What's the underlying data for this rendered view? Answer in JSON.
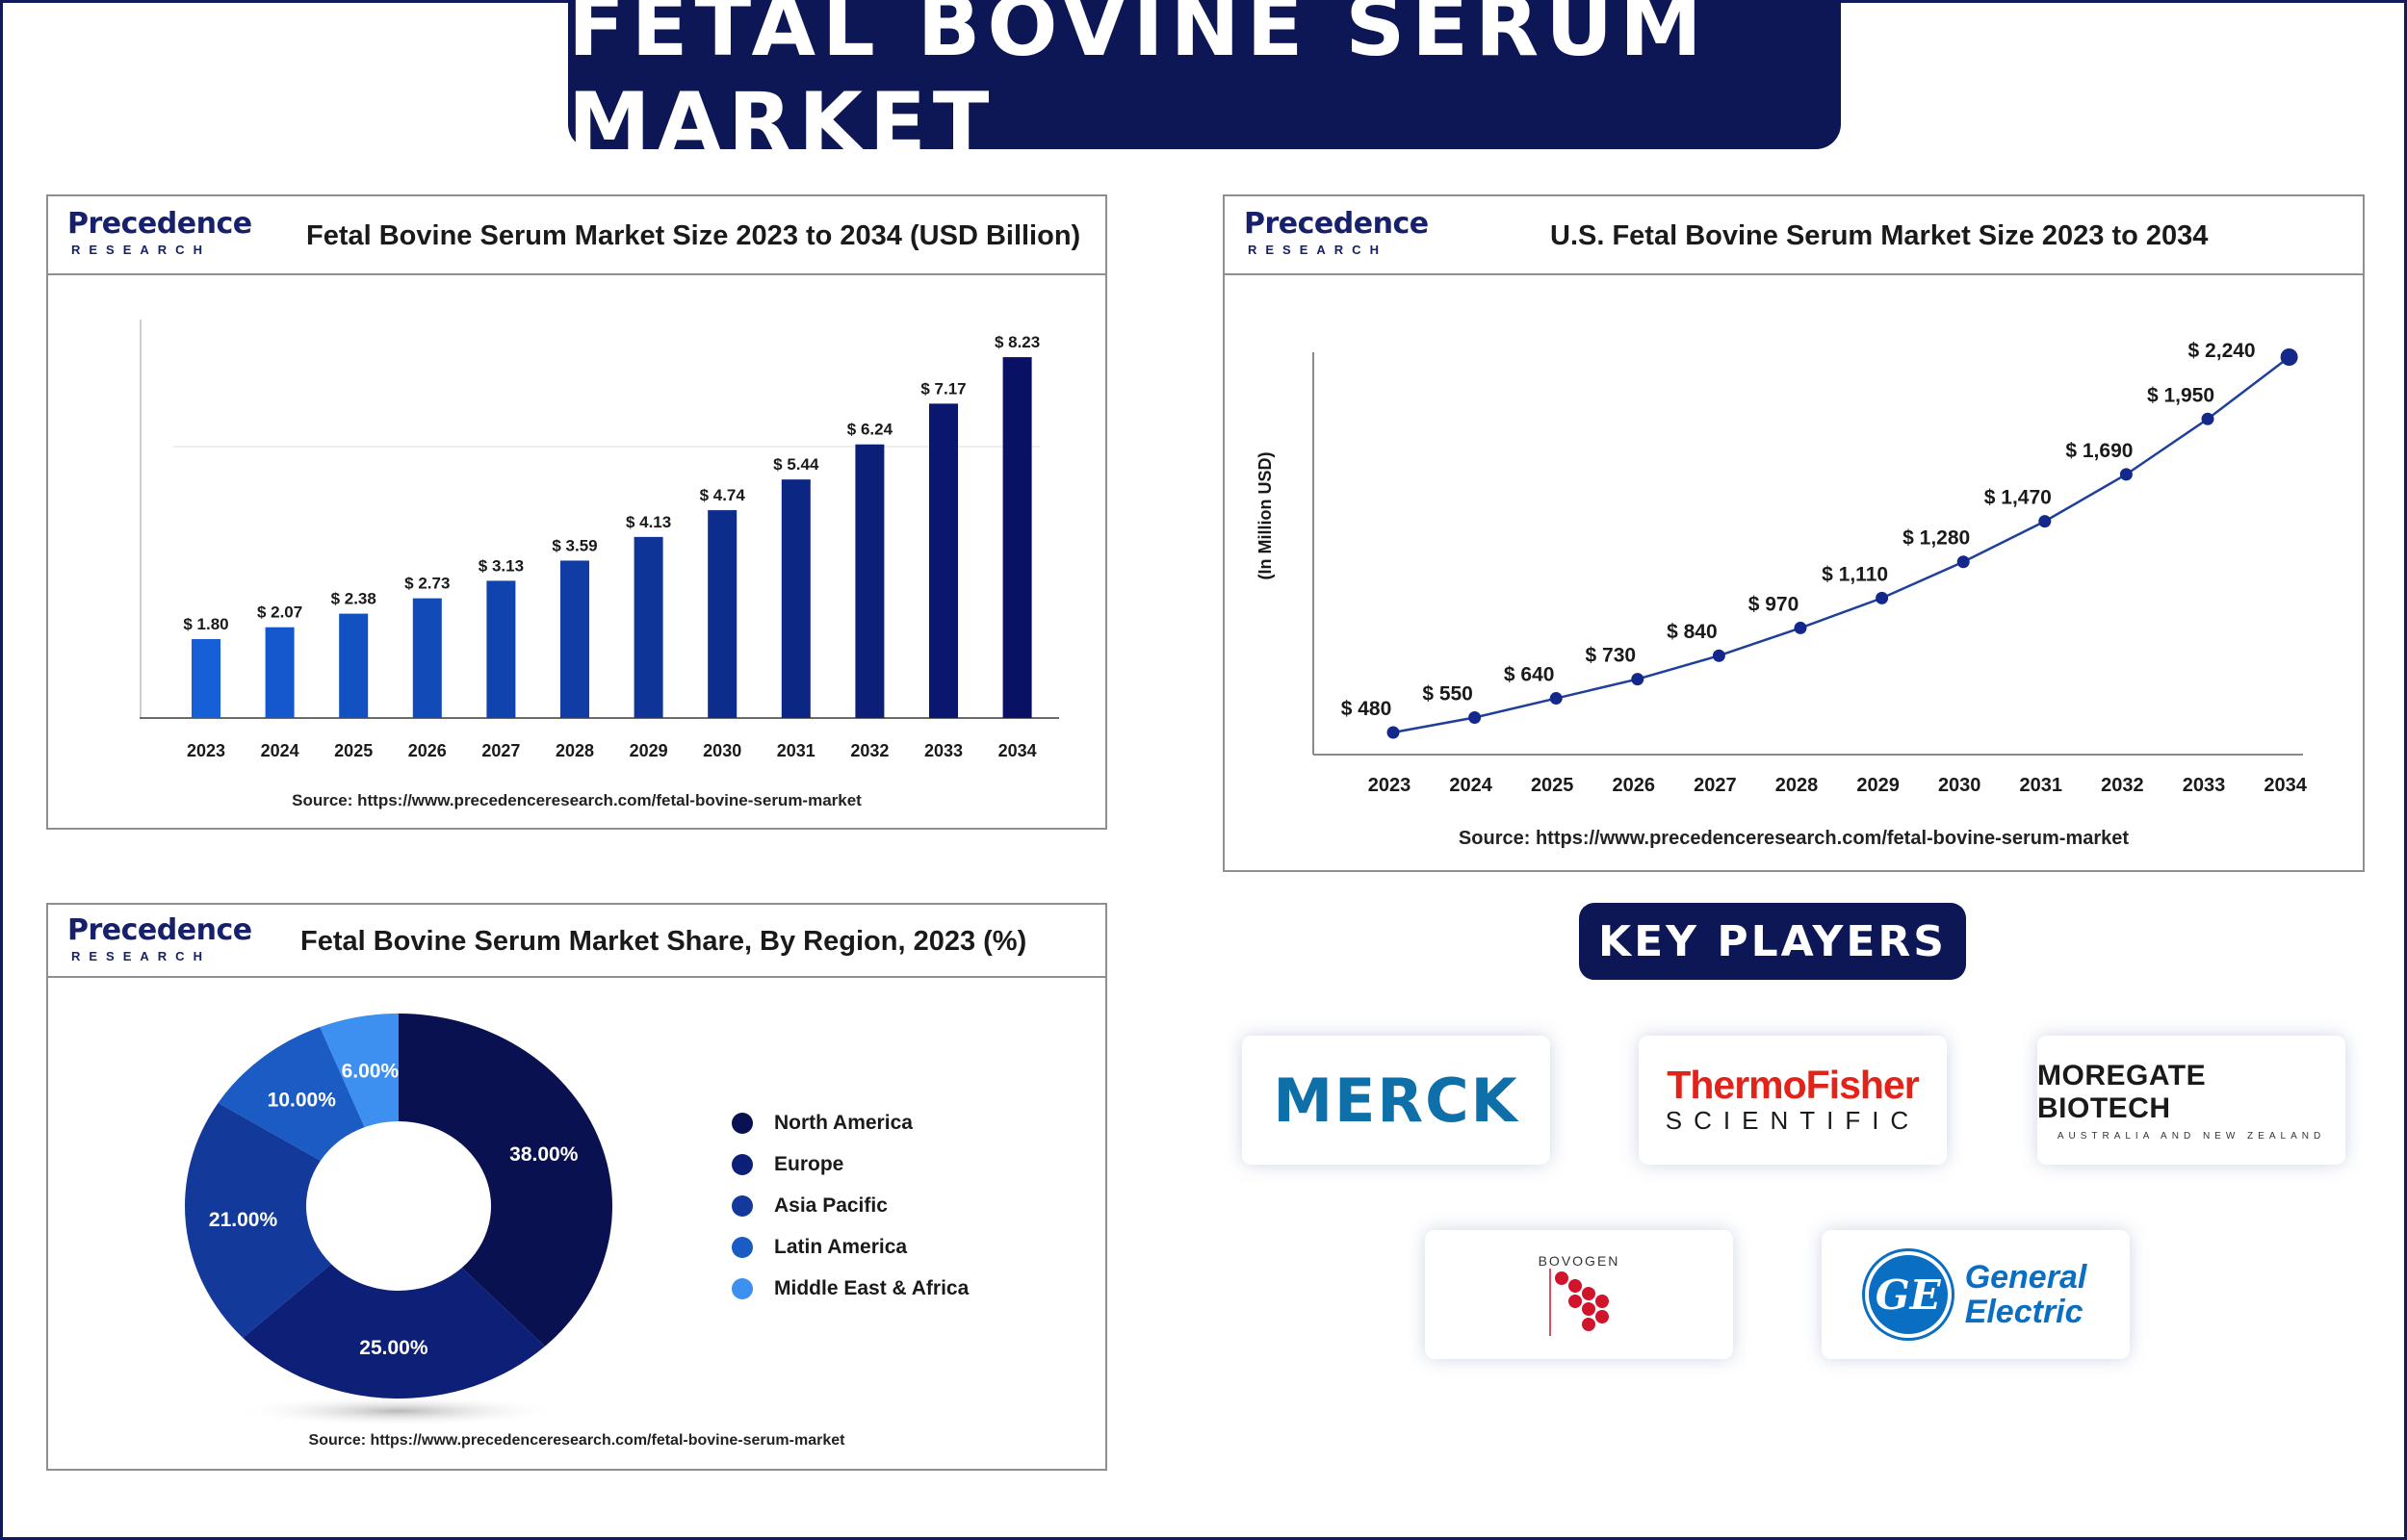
{
  "main_title": "FETAL BOVINE SERUM MARKET",
  "brand": {
    "line1": "Precedence",
    "line2": "RESEARCH"
  },
  "colors": {
    "navy": "#0d1756",
    "bar": "#0b1a7a",
    "line": "#1e3f9a",
    "region_colors": [
      "#0a1150",
      "#0e1f78",
      "#133a9a",
      "#1a5cc4",
      "#3d8ff0"
    ]
  },
  "chart_data": [
    {
      "type": "bar",
      "title": "Fetal Bovine Serum Market Size 2023 to 2034 (USD Billion)",
      "categories": [
        "2023",
        "2024",
        "2025",
        "2026",
        "2027",
        "2028",
        "2029",
        "2030",
        "2031",
        "2032",
        "2033",
        "2034"
      ],
      "values": [
        1.8,
        2.07,
        2.38,
        2.73,
        3.13,
        3.59,
        4.13,
        4.74,
        5.44,
        6.24,
        7.17,
        8.23
      ],
      "labels": [
        "$ 1.80",
        "$ 2.07",
        "$ 2.38",
        "$ 2.73",
        "$ 3.13",
        "$ 3.59",
        "$ 4.13",
        "$ 4.74",
        "$ 5.44",
        "$ 6.24",
        "$ 7.17",
        "$ 8.23"
      ],
      "xlabel": "",
      "ylabel": "",
      "ylim": [
        0,
        9
      ],
      "source": "Source: https://www.precedenceresearch.com/fetal-bovine-serum-market"
    },
    {
      "type": "line",
      "title": "U.S. Fetal Bovine Serum Market Size 2023 to 2034",
      "categories": [
        "2023",
        "2024",
        "2025",
        "2026",
        "2027",
        "2028",
        "2029",
        "2030",
        "2031",
        "2032",
        "2033",
        "2034"
      ],
      "values": [
        480,
        550,
        640,
        730,
        840,
        970,
        1110,
        1280,
        1470,
        1690,
        1950,
        2240
      ],
      "labels": [
        "$ 480",
        "$ 550",
        "$ 640",
        "$ 730",
        "$ 840",
        "$ 970",
        "$ 1,110",
        "$ 1,280",
        "$ 1,470",
        "$ 1,690",
        "$ 1,950",
        "$ 2,240"
      ],
      "xlabel": "",
      "ylabel": "(In Million USD)",
      "ylim": [
        300,
        2300
      ],
      "source": "Source: https://www.precedenceresearch.com/fetal-bovine-serum-market"
    },
    {
      "type": "pie",
      "title": "Fetal Bovine Serum Market Share, By Region, 2023 (%)",
      "categories": [
        "North America",
        "Europe",
        "Asia Pacific",
        "Latin America",
        "Middle East & Africa"
      ],
      "values": [
        38.0,
        25.0,
        21.0,
        10.0,
        6.0
      ],
      "labels": [
        "38.00%",
        "25.00%",
        "21.00%",
        "10.00%",
        "6.00%"
      ],
      "legend": "right",
      "source": "Source: https://www.precedenceresearch.com/fetal-bovine-serum-market"
    }
  ],
  "key_players": {
    "title": "KEY PLAYERS",
    "merck": "MERCK",
    "thermo_line1": "ThermoFisher",
    "thermo_line2": "SCIENTIFIC",
    "moregate_line1": "MOREGATE BIOTECH",
    "moregate_line2": "AUSTRALIA AND NEW ZEALAND",
    "bovogen_line1": "BOVOGEN",
    "ge_mark": "GE",
    "ge_line1": "General",
    "ge_line2": "Electric"
  }
}
